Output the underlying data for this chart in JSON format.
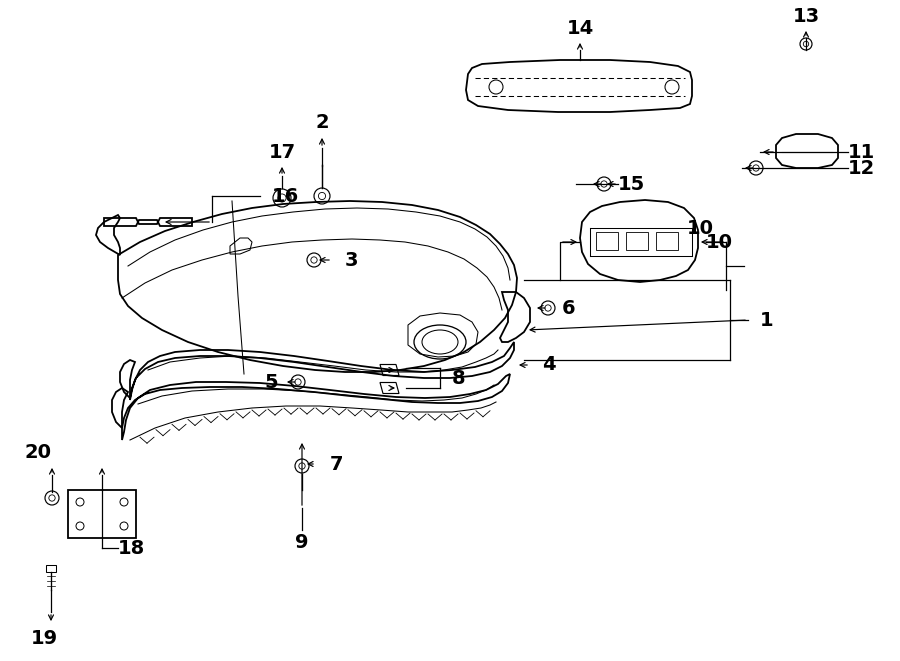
{
  "bg_color": "#ffffff",
  "lc": "#000000",
  "fig_width": 9.0,
  "fig_height": 6.61,
  "dpi": 100,
  "lw": 1.3,
  "lw_t": 0.75,
  "fs": 14
}
